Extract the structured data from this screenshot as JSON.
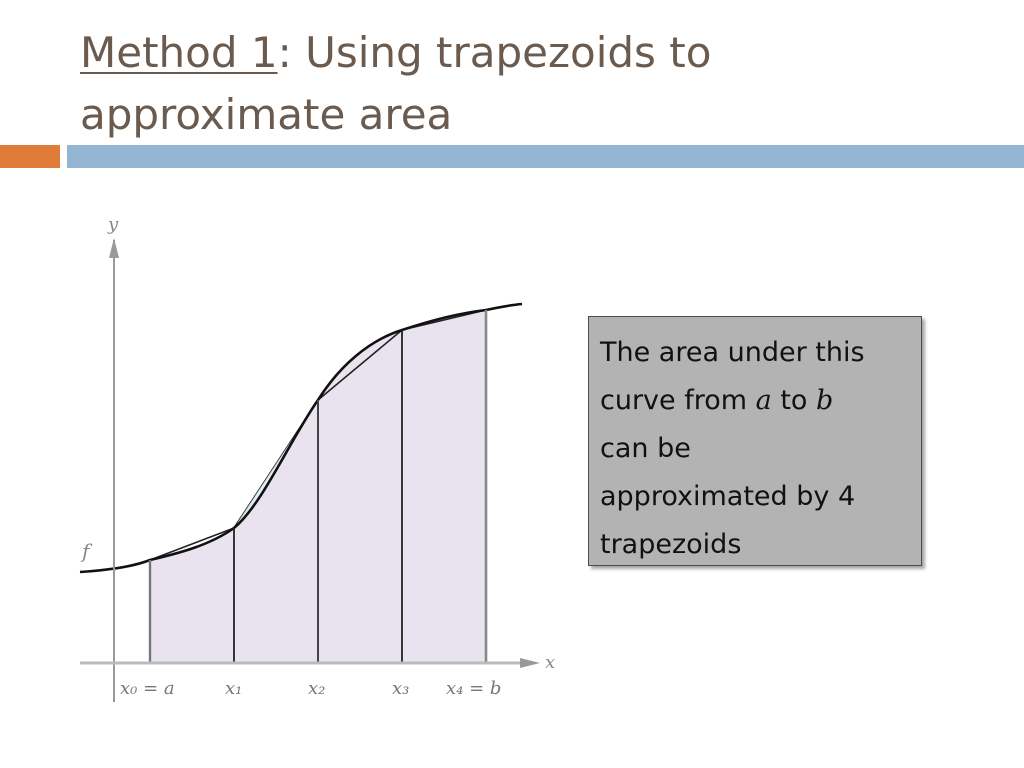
{
  "slide": {
    "title_link": "Method 1",
    "title_rest": ": Using trapezoids to approximate area",
    "accent_orange": "#e07b39",
    "accent_blue": "#94b6d2",
    "title_color": "#6b5a4e"
  },
  "figure": {
    "y_label": "y",
    "x_label": "x",
    "f_label": "f",
    "x_ticks": [
      "x₀ = a",
      "x₁",
      "x₂",
      "x₃",
      "x₄ = b"
    ],
    "fill_color": "#e9e3f0",
    "trapezoid_count": 4
  },
  "callout": {
    "line1": "The area under this",
    "line2_a": "curve from ",
    "a": "a",
    "line2_b": " to ",
    "b": "b",
    "line3": "can be",
    "line4": "approximated by 4",
    "line5": "trapezoids"
  }
}
